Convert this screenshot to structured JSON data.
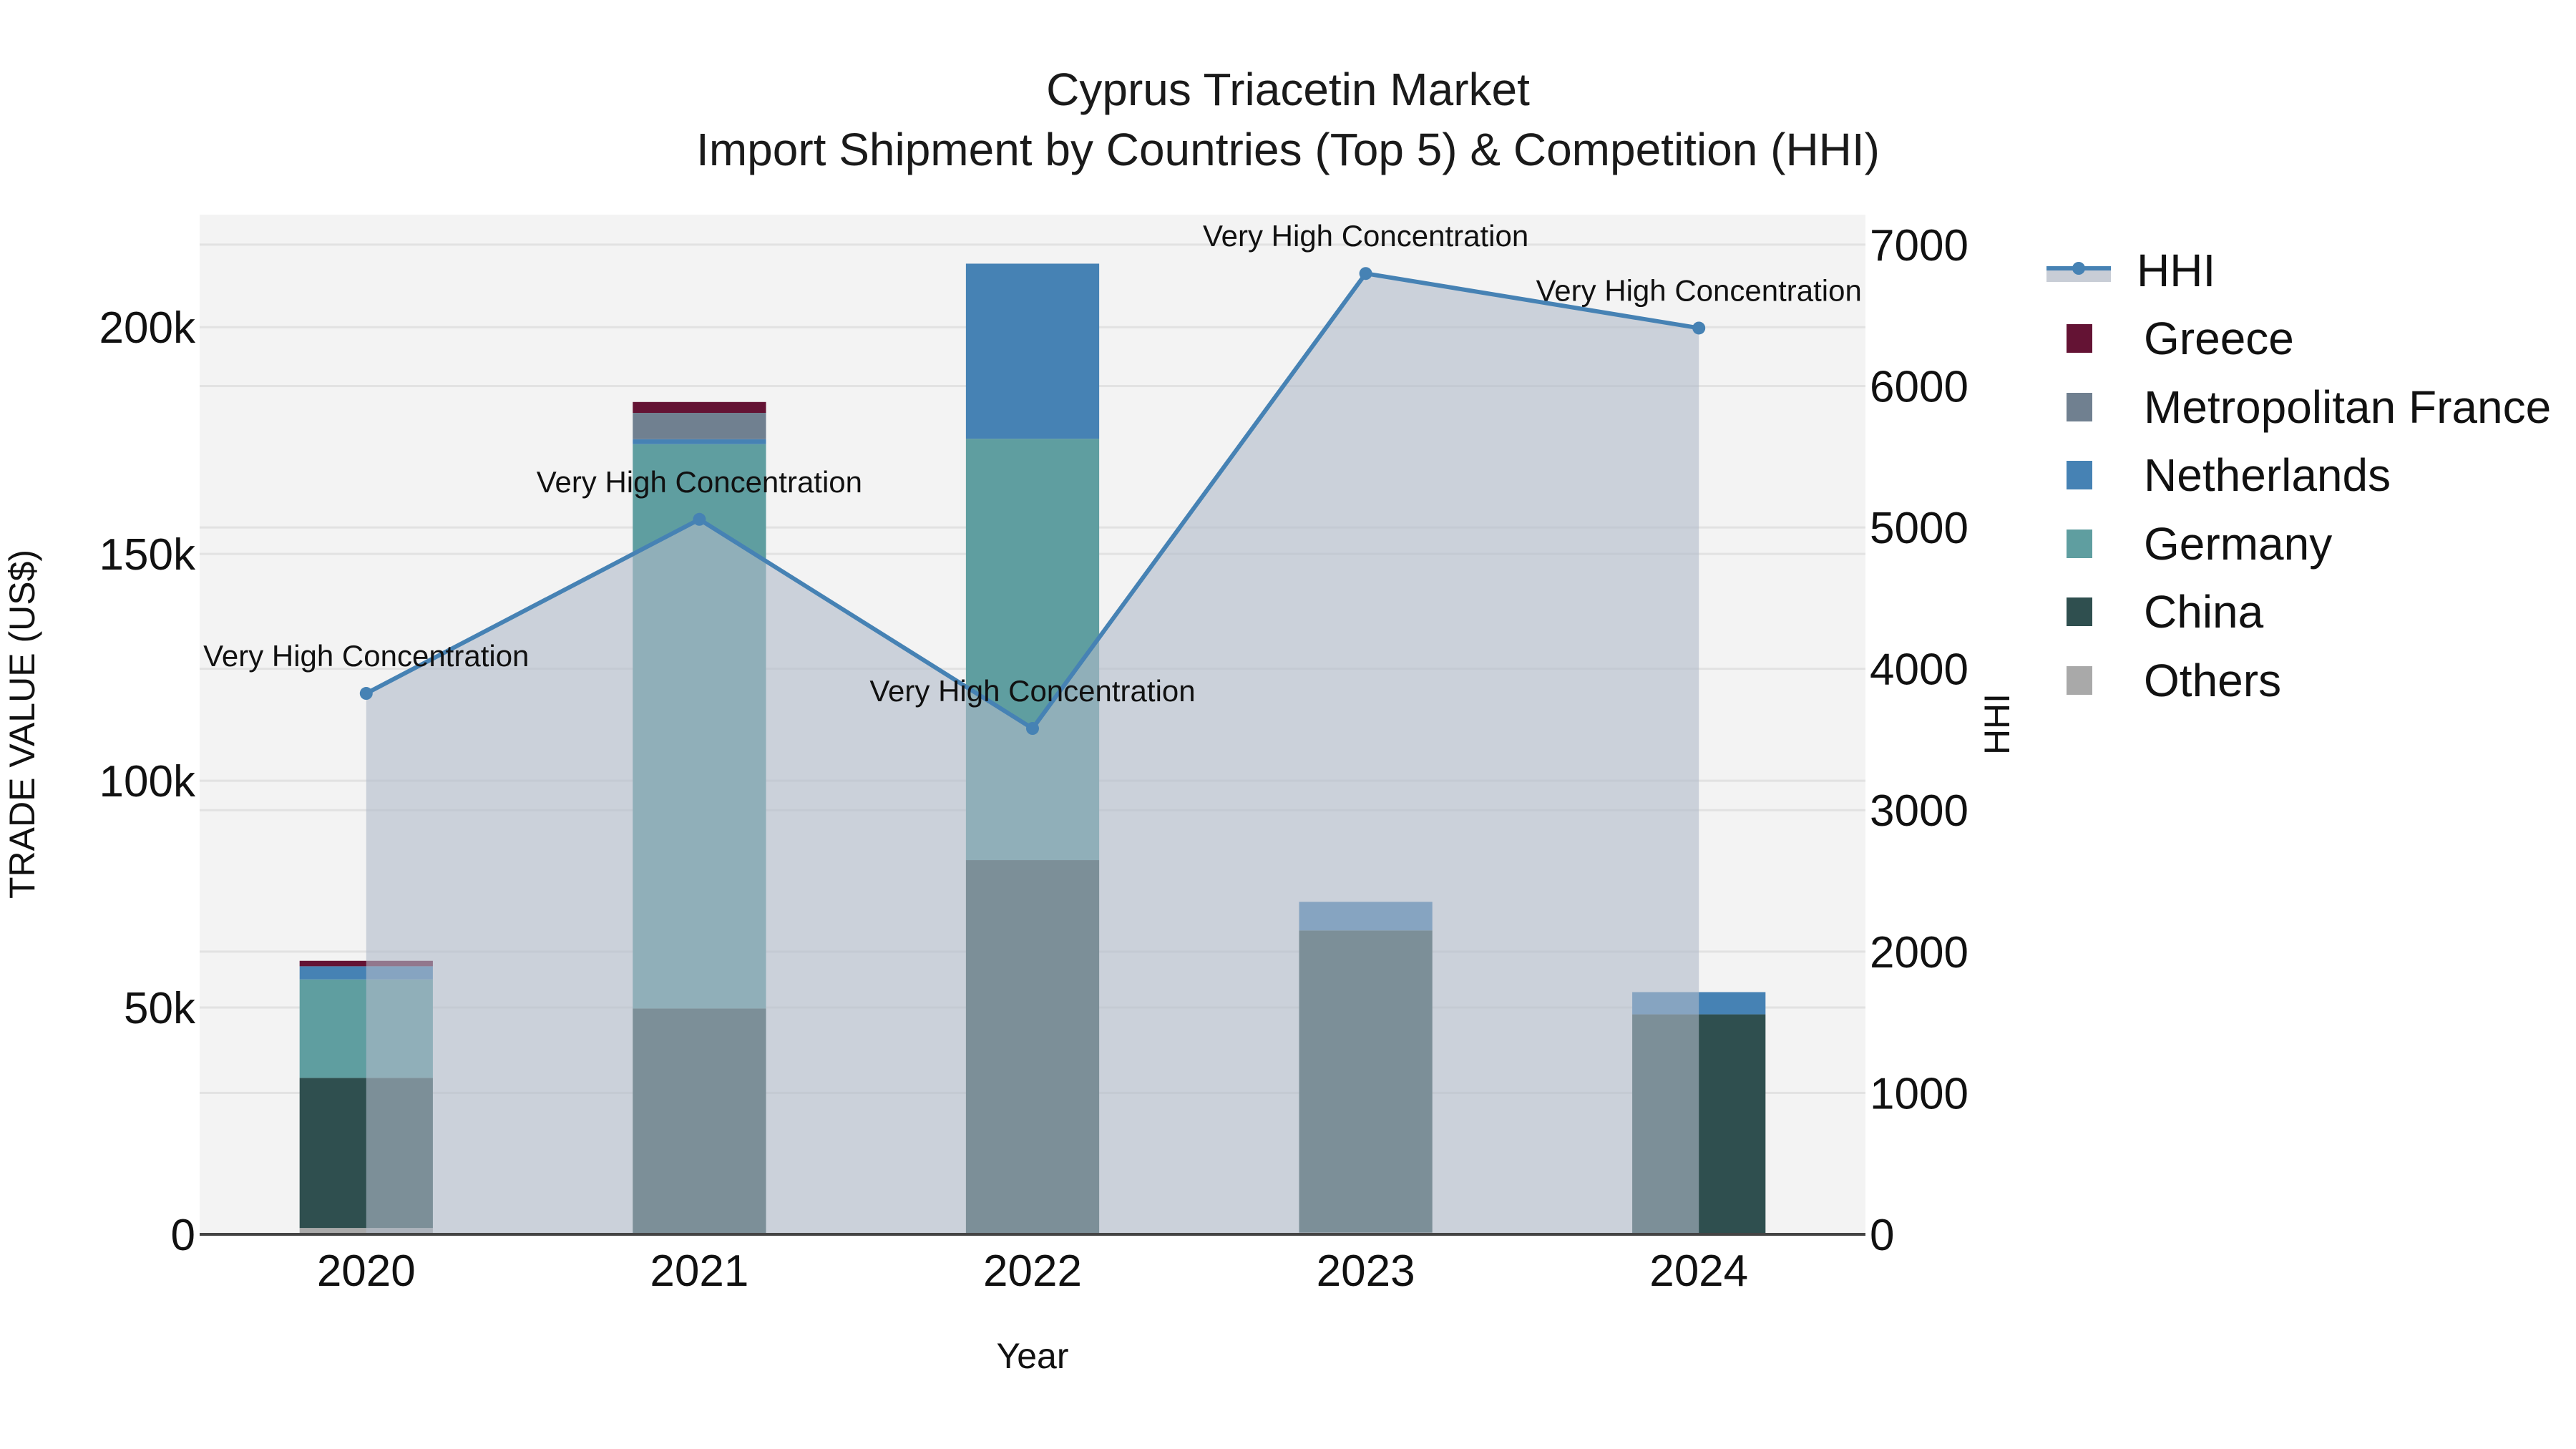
{
  "title": {
    "line1": "Cyprus Triacetin Market",
    "line2": "Import Shipment by Countries (Top 5) & Competition (HHI)"
  },
  "axes": {
    "x_label": "Year",
    "y_left_label": "TRADE VALUE (US$)",
    "y_right_label": "HHI",
    "y_left_ticks": [
      "0",
      "50k",
      "100k",
      "150k",
      "200k"
    ],
    "y_right_ticks": [
      "0",
      "1000",
      "2000",
      "3000",
      "4000",
      "5000",
      "6000",
      "7000"
    ]
  },
  "legend": {
    "items": [
      {
        "label": "HHI",
        "type": "line",
        "color": "#4682B4"
      },
      {
        "label": "Greece",
        "type": "bar",
        "color": "#641334"
      },
      {
        "label": "Metropolitan France",
        "type": "bar",
        "color": "#708090"
      },
      {
        "label": "Netherlands",
        "type": "bar",
        "color": "#4682B4"
      },
      {
        "label": "Germany",
        "type": "bar",
        "color": "#5F9EA0"
      },
      {
        "label": "China",
        "type": "bar",
        "color": "#2F4F4F"
      },
      {
        "label": "Others",
        "type": "bar",
        "color": "#A9A9A9"
      }
    ]
  },
  "colors": {
    "plot_bg": "#F3F3F3",
    "grid": "#E2E2E2",
    "hhi_fill": "rgba(176,186,201,0.6)",
    "hhi_line": "#4682B4"
  },
  "chart_data": {
    "type": "bar",
    "stacked": true,
    "title": "Cyprus Triacetin Market — Import Shipment by Countries (Top 5) & Competition (HHI)",
    "xlabel": "Year",
    "ylabel": "TRADE VALUE (US$)",
    "y2label": "HHI",
    "categories": [
      "2020",
      "2021",
      "2022",
      "2023",
      "2024"
    ],
    "ylim": [
      0,
      224800
    ],
    "y2lim": [
      0,
      7212
    ],
    "series": [
      {
        "name": "Others",
        "color": "#A9A9A9",
        "values": [
          1400,
          0,
          0,
          400,
          0
        ]
      },
      {
        "name": "China",
        "color": "#2F4F4F",
        "values": [
          33100,
          49800,
          82500,
          66600,
          48500
        ]
      },
      {
        "name": "Germany",
        "color": "#5F9EA0",
        "values": [
          21700,
          124400,
          92900,
          0,
          0
        ]
      },
      {
        "name": "Netherlands",
        "color": "#4682B4",
        "values": [
          2900,
          1100,
          38600,
          6300,
          4900
        ]
      },
      {
        "name": "Metropolitan France",
        "color": "#708090",
        "values": [
          0,
          5800,
          0,
          0,
          0
        ]
      },
      {
        "name": "Greece",
        "color": "#641334",
        "values": [
          1200,
          2400,
          0,
          0,
          0
        ]
      }
    ],
    "line_series": {
      "name": "HHI",
      "axis": "right",
      "color": "#4682B4",
      "fill": "tozeroy",
      "values": [
        3826,
        5057,
        3578,
        6796,
        6410
      ],
      "annotations": [
        "Very High Concentration",
        "Very High Concentration",
        "Very High Concentration",
        "Very High Concentration",
        "Very High Concentration"
      ]
    },
    "grid": true,
    "legend_position": "right"
  }
}
